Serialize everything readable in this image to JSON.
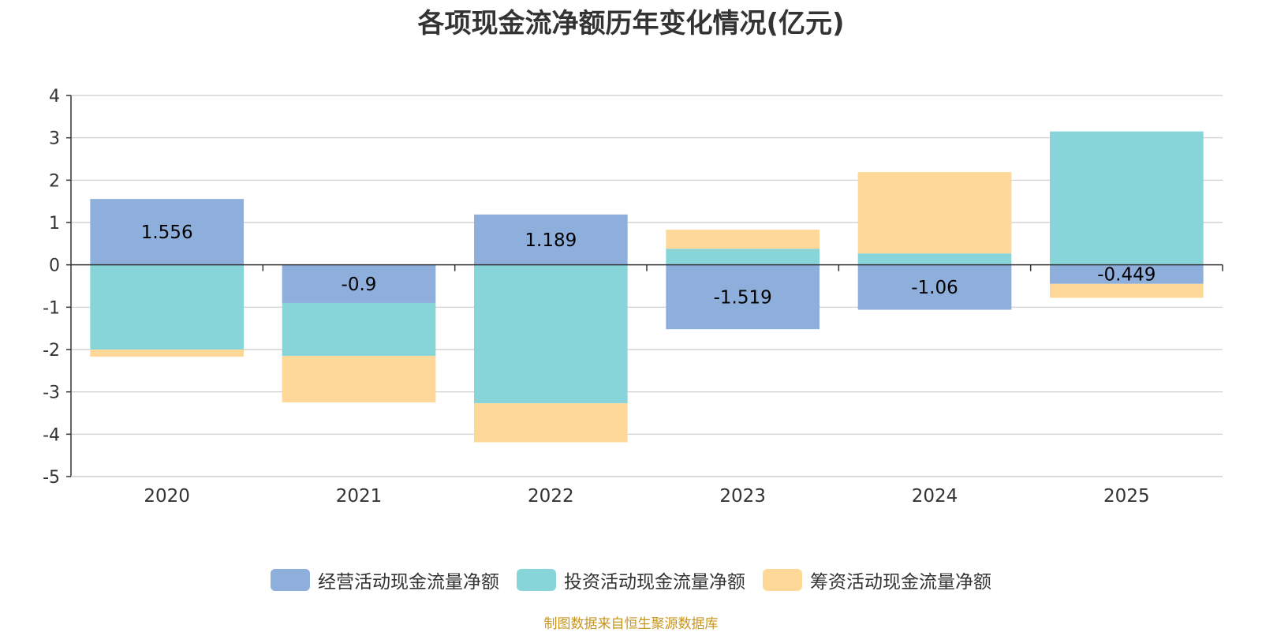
{
  "chart_data": {
    "type": "bar",
    "stacked": true,
    "title": "各项现金流净额历年变化情况(亿元)",
    "categories": [
      "2020",
      "2021",
      "2022",
      "2023",
      "2024",
      "2025"
    ],
    "ylim": [
      -5,
      4
    ],
    "yticks": [
      4,
      3,
      2,
      1,
      0,
      -1,
      -2,
      -3,
      -4,
      -5
    ],
    "series": [
      {
        "name": "经营活动现金流量净额",
        "color": "#8eaedb",
        "values": [
          1.556,
          -0.9,
          1.189,
          -1.519,
          -1.06,
          -0.449
        ],
        "labels": [
          "1.556",
          "-0.9",
          "1.189",
          "-1.519",
          "-1.06",
          "-0.449"
        ]
      },
      {
        "name": "投资活动现金流量净额",
        "color": "#87d5d8",
        "values": [
          -2.0,
          -1.25,
          -3.27,
          0.38,
          0.27,
          3.15
        ]
      },
      {
        "name": "筹资活动现金流量净额",
        "color": "#fdd899",
        "values": [
          -0.17,
          -1.1,
          -0.92,
          0.45,
          1.92,
          -0.33
        ]
      }
    ],
    "legend_position": "bottom",
    "grid": true
  },
  "source_note": "制图数据来自恒生聚源数据库"
}
